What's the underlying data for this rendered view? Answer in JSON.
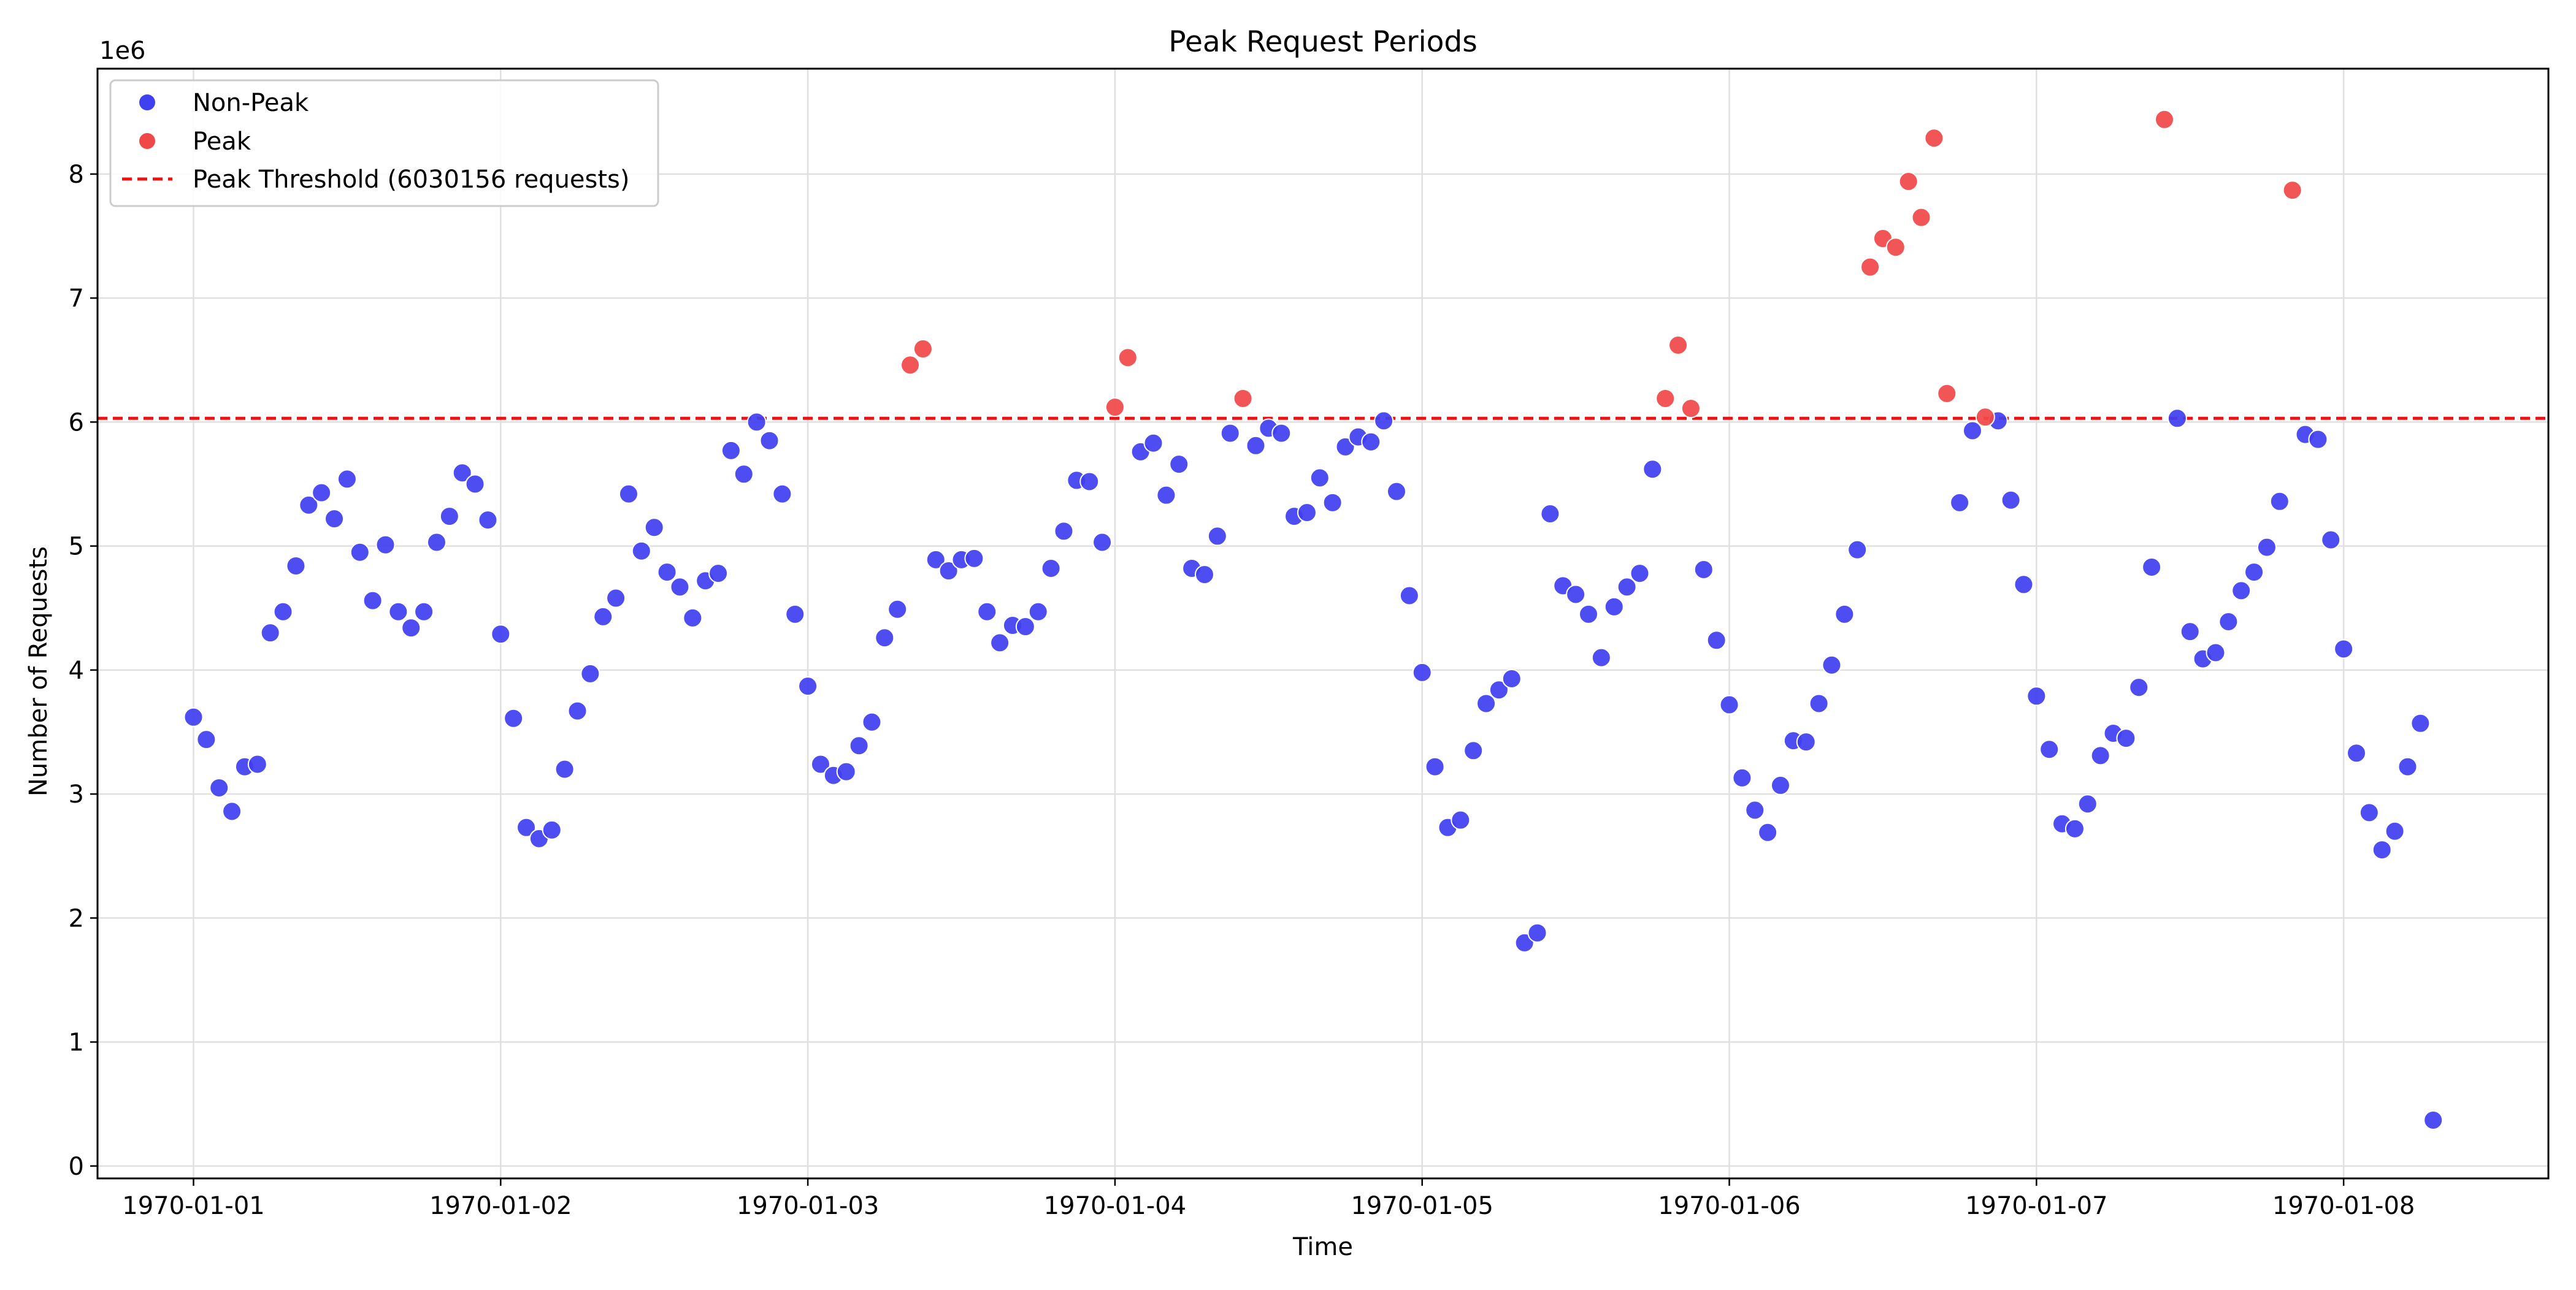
{
  "chart_data": {
    "type": "scatter",
    "title": "Peak Request Periods",
    "xlabel": "Time",
    "ylabel": "Number of Requests",
    "y_multiplier_label": "1e6",
    "xlim": [
      "1969-12-31T16:30",
      "1970-01-08T16:00"
    ],
    "ylim": [
      -0.1,
      8.85
    ],
    "x_ticks": [
      "1970-01-01",
      "1970-01-02",
      "1970-01-03",
      "1970-01-04",
      "1970-01-05",
      "1970-01-06",
      "1970-01-07",
      "1970-01-08"
    ],
    "y_ticks": [
      0,
      1,
      2,
      3,
      4,
      5,
      6,
      7,
      8
    ],
    "grid": true,
    "legend_position": "upper-left",
    "colors": {
      "nonpeak": "#4040f0",
      "peak": "#f04848",
      "threshold": "#ee1111"
    },
    "threshold": {
      "value": 6.030156,
      "label": "Peak Threshold (6030156 requests)"
    },
    "series": [
      {
        "name": "Non-Peak",
        "points": [
          [
            "1970-01-01T00:00",
            3.62
          ],
          [
            "1970-01-01T01:00",
            3.44
          ],
          [
            "1970-01-01T02:00",
            3.05
          ],
          [
            "1970-01-01T03:00",
            2.86
          ],
          [
            "1970-01-01T04:00",
            3.22
          ],
          [
            "1970-01-01T05:00",
            3.24
          ],
          [
            "1970-01-01T06:00",
            4.3
          ],
          [
            "1970-01-01T07:00",
            4.47
          ],
          [
            "1970-01-01T08:00",
            4.84
          ],
          [
            "1970-01-01T09:00",
            5.33
          ],
          [
            "1970-01-01T10:00",
            5.43
          ],
          [
            "1970-01-01T11:00",
            5.22
          ],
          [
            "1970-01-01T12:00",
            5.54
          ],
          [
            "1970-01-01T13:00",
            4.95
          ],
          [
            "1970-01-01T14:00",
            4.56
          ],
          [
            "1970-01-01T15:00",
            5.01
          ],
          [
            "1970-01-01T16:00",
            4.47
          ],
          [
            "1970-01-01T17:00",
            4.34
          ],
          [
            "1970-01-01T18:00",
            4.47
          ],
          [
            "1970-01-01T19:00",
            5.03
          ],
          [
            "1970-01-01T20:00",
            5.24
          ],
          [
            "1970-01-01T21:00",
            5.59
          ],
          [
            "1970-01-01T22:00",
            5.5
          ],
          [
            "1970-01-01T23:00",
            5.21
          ],
          [
            "1970-01-02T00:00",
            4.29
          ],
          [
            "1970-01-02T01:00",
            3.61
          ],
          [
            "1970-01-02T02:00",
            2.73
          ],
          [
            "1970-01-02T03:00",
            2.64
          ],
          [
            "1970-01-02T04:00",
            2.71
          ],
          [
            "1970-01-02T05:00",
            3.2
          ],
          [
            "1970-01-02T06:00",
            3.67
          ],
          [
            "1970-01-02T07:00",
            3.97
          ],
          [
            "1970-01-02T08:00",
            4.43
          ],
          [
            "1970-01-02T09:00",
            4.58
          ],
          [
            "1970-01-02T10:00",
            5.42
          ],
          [
            "1970-01-02T11:00",
            4.96
          ],
          [
            "1970-01-02T12:00",
            5.15
          ],
          [
            "1970-01-02T13:00",
            4.79
          ],
          [
            "1970-01-02T14:00",
            4.67
          ],
          [
            "1970-01-02T15:00",
            4.42
          ],
          [
            "1970-01-02T16:00",
            4.72
          ],
          [
            "1970-01-02T17:00",
            4.78
          ],
          [
            "1970-01-02T18:00",
            5.77
          ],
          [
            "1970-01-02T19:00",
            5.58
          ],
          [
            "1970-01-02T20:00",
            6.0
          ],
          [
            "1970-01-02T21:00",
            5.85
          ],
          [
            "1970-01-02T22:00",
            5.42
          ],
          [
            "1970-01-02T23:00",
            4.45
          ],
          [
            "1970-01-03T00:00",
            3.87
          ],
          [
            "1970-01-03T01:00",
            3.24
          ],
          [
            "1970-01-03T02:00",
            3.15
          ],
          [
            "1970-01-03T03:00",
            3.18
          ],
          [
            "1970-01-03T04:00",
            3.39
          ],
          [
            "1970-01-03T05:00",
            3.58
          ],
          [
            "1970-01-03T06:00",
            4.26
          ],
          [
            "1970-01-03T07:00",
            4.49
          ],
          [
            "1970-01-03T10:00",
            4.89
          ],
          [
            "1970-01-03T11:00",
            4.8
          ],
          [
            "1970-01-03T12:00",
            4.89
          ],
          [
            "1970-01-03T13:00",
            4.9
          ],
          [
            "1970-01-03T14:00",
            4.47
          ],
          [
            "1970-01-03T15:00",
            4.22
          ],
          [
            "1970-01-03T16:00",
            4.36
          ],
          [
            "1970-01-03T17:00",
            4.35
          ],
          [
            "1970-01-03T18:00",
            4.47
          ],
          [
            "1970-01-03T19:00",
            4.82
          ],
          [
            "1970-01-03T20:00",
            5.12
          ],
          [
            "1970-01-03T21:00",
            5.53
          ],
          [
            "1970-01-03T22:00",
            5.52
          ],
          [
            "1970-01-03T23:00",
            5.03
          ],
          [
            "1970-01-04T02:00",
            5.76
          ],
          [
            "1970-01-04T03:00",
            5.83
          ],
          [
            "1970-01-04T04:00",
            5.41
          ],
          [
            "1970-01-04T05:00",
            5.66
          ],
          [
            "1970-01-04T06:00",
            4.82
          ],
          [
            "1970-01-04T07:00",
            4.77
          ],
          [
            "1970-01-04T08:00",
            5.08
          ],
          [
            "1970-01-04T09:00",
            5.91
          ],
          [
            "1970-01-04T11:00",
            5.81
          ],
          [
            "1970-01-04T12:00",
            5.95
          ],
          [
            "1970-01-04T13:00",
            5.91
          ],
          [
            "1970-01-04T14:00",
            5.24
          ],
          [
            "1970-01-04T15:00",
            5.27
          ],
          [
            "1970-01-04T16:00",
            5.55
          ],
          [
            "1970-01-04T17:00",
            5.35
          ],
          [
            "1970-01-04T18:00",
            5.8
          ],
          [
            "1970-01-04T19:00",
            5.88
          ],
          [
            "1970-01-04T20:00",
            5.84
          ],
          [
            "1970-01-04T21:00",
            6.01
          ],
          [
            "1970-01-04T22:00",
            5.44
          ],
          [
            "1970-01-04T23:00",
            4.6
          ],
          [
            "1970-01-05T00:00",
            3.98
          ],
          [
            "1970-01-05T01:00",
            3.22
          ],
          [
            "1970-01-05T02:00",
            2.73
          ],
          [
            "1970-01-05T03:00",
            2.79
          ],
          [
            "1970-01-05T04:00",
            3.35
          ],
          [
            "1970-01-05T05:00",
            3.73
          ],
          [
            "1970-01-05T06:00",
            3.84
          ],
          [
            "1970-01-05T07:00",
            3.93
          ],
          [
            "1970-01-05T08:00",
            1.8
          ],
          [
            "1970-01-05T09:00",
            1.88
          ],
          [
            "1970-01-05T10:00",
            5.26
          ],
          [
            "1970-01-05T11:00",
            4.68
          ],
          [
            "1970-01-05T12:00",
            4.61
          ],
          [
            "1970-01-05T13:00",
            4.45
          ],
          [
            "1970-01-05T14:00",
            4.1
          ],
          [
            "1970-01-05T15:00",
            4.51
          ],
          [
            "1970-01-05T16:00",
            4.67
          ],
          [
            "1970-01-05T17:00",
            4.78
          ],
          [
            "1970-01-05T18:00",
            5.62
          ],
          [
            "1970-01-05T22:00",
            4.81
          ],
          [
            "1970-01-05T23:00",
            4.24
          ],
          [
            "1970-01-06T00:00",
            3.72
          ],
          [
            "1970-01-06T01:00",
            3.13
          ],
          [
            "1970-01-06T02:00",
            2.87
          ],
          [
            "1970-01-06T03:00",
            2.69
          ],
          [
            "1970-01-06T04:00",
            3.07
          ],
          [
            "1970-01-06T05:00",
            3.43
          ],
          [
            "1970-01-06T06:00",
            3.42
          ],
          [
            "1970-01-06T07:00",
            3.73
          ],
          [
            "1970-01-06T08:00",
            4.04
          ],
          [
            "1970-01-06T09:00",
            4.45
          ],
          [
            "1970-01-06T10:00",
            4.97
          ],
          [
            "1970-01-06T18:00",
            5.35
          ],
          [
            "1970-01-06T19:00",
            5.93
          ],
          [
            "1970-01-06T21:00",
            6.01
          ],
          [
            "1970-01-06T22:00",
            5.37
          ],
          [
            "1970-01-06T23:00",
            4.69
          ],
          [
            "1970-01-07T00:00",
            3.79
          ],
          [
            "1970-01-07T01:00",
            3.36
          ],
          [
            "1970-01-07T02:00",
            2.76
          ],
          [
            "1970-01-07T03:00",
            2.72
          ],
          [
            "1970-01-07T04:00",
            2.92
          ],
          [
            "1970-01-07T05:00",
            3.31
          ],
          [
            "1970-01-07T06:00",
            3.49
          ],
          [
            "1970-01-07T07:00",
            3.45
          ],
          [
            "1970-01-07T08:00",
            3.86
          ],
          [
            "1970-01-07T09:00",
            4.83
          ],
          [
            "1970-01-07T11:00",
            6.03
          ],
          [
            "1970-01-07T12:00",
            4.31
          ],
          [
            "1970-01-07T13:00",
            4.09
          ],
          [
            "1970-01-07T14:00",
            4.14
          ],
          [
            "1970-01-07T15:00",
            4.39
          ],
          [
            "1970-01-07T16:00",
            4.64
          ],
          [
            "1970-01-07T17:00",
            4.79
          ],
          [
            "1970-01-07T18:00",
            4.99
          ],
          [
            "1970-01-07T19:00",
            5.36
          ],
          [
            "1970-01-07T21:00",
            5.9
          ],
          [
            "1970-01-07T22:00",
            5.86
          ],
          [
            "1970-01-07T23:00",
            5.05
          ],
          [
            "1970-01-08T00:00",
            4.17
          ],
          [
            "1970-01-08T01:00",
            3.33
          ],
          [
            "1970-01-08T02:00",
            2.85
          ],
          [
            "1970-01-08T03:00",
            2.55
          ],
          [
            "1970-01-08T04:00",
            2.7
          ],
          [
            "1970-01-08T05:00",
            3.22
          ],
          [
            "1970-01-08T06:00",
            3.57
          ],
          [
            "1970-01-08T07:00",
            0.37
          ]
        ]
      },
      {
        "name": "Peak",
        "points": [
          [
            "1970-01-03T08:00",
            6.46
          ],
          [
            "1970-01-03T09:00",
            6.59
          ],
          [
            "1970-01-04T00:00",
            6.12
          ],
          [
            "1970-01-04T01:00",
            6.52
          ],
          [
            "1970-01-04T10:00",
            6.19
          ],
          [
            "1970-01-05T19:00",
            6.19
          ],
          [
            "1970-01-05T20:00",
            6.62
          ],
          [
            "1970-01-05T21:00",
            6.11
          ],
          [
            "1970-01-06T11:00",
            7.25
          ],
          [
            "1970-01-06T12:00",
            7.48
          ],
          [
            "1970-01-06T13:00",
            7.41
          ],
          [
            "1970-01-06T14:00",
            7.94
          ],
          [
            "1970-01-06T15:00",
            7.65
          ],
          [
            "1970-01-06T16:00",
            8.29
          ],
          [
            "1970-01-06T17:00",
            6.23
          ],
          [
            "1970-01-06T20:00",
            6.04
          ],
          [
            "1970-01-07T10:00",
            8.44
          ],
          [
            "1970-01-07T20:00",
            7.87
          ]
        ]
      }
    ]
  }
}
